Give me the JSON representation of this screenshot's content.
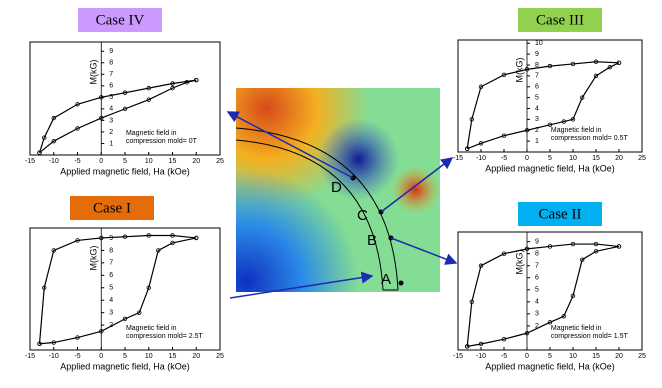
{
  "chart_data": [
    {
      "type": "line",
      "title": "Case IV",
      "title_color": "#cc99ff",
      "xlabel": "Applied magnetic field, Ha (kOe)",
      "ylabel": "M(kG)",
      "annotation": [
        "Magnetic field in",
        "compression mold= 0T"
      ],
      "xlim": [
        -15,
        25
      ],
      "xticks": [
        -15,
        -10,
        -5,
        0,
        5,
        10,
        15,
        20,
        25
      ],
      "ylim": [
        0,
        9.8
      ],
      "yticks": [
        1,
        2,
        3,
        4,
        5,
        6,
        7,
        8,
        9
      ],
      "series": [
        {
          "color": "#000000",
          "x": [
            20,
            15,
            10,
            5,
            0,
            -5,
            -10,
            -12,
            -13
          ],
          "values": [
            6.5,
            6.2,
            5.8,
            5.4,
            5.0,
            4.4,
            3.2,
            1.5,
            0.2
          ]
        },
        {
          "color": "#000000",
          "x": [
            -13,
            -10,
            -5,
            0,
            5,
            10,
            15,
            18,
            20
          ],
          "values": [
            0.2,
            1.2,
            2.3,
            3.2,
            4.0,
            4.8,
            5.8,
            6.3,
            6.5
          ]
        }
      ]
    },
    {
      "type": "line",
      "title": "Case III",
      "title_color": "#92d050",
      "xlabel": "Applied magnetic field, Ha (kOe)",
      "ylabel": "M(kG)",
      "annotation": [
        "Magnetic field in",
        "compression mold= 0.5T"
      ],
      "xlim": [
        -15,
        25
      ],
      "xticks": [
        -15,
        -10,
        -5,
        0,
        5,
        10,
        15,
        20,
        25
      ],
      "ylim": [
        0,
        10.3
      ],
      "yticks": [
        1,
        2,
        3,
        4,
        5,
        6,
        7,
        8,
        9,
        10
      ],
      "series": [
        {
          "color": "#000000",
          "x": [
            20,
            15,
            10,
            5,
            0,
            -5,
            -10,
            -12,
            -13
          ],
          "values": [
            8.2,
            8.3,
            8.1,
            7.9,
            7.6,
            7.1,
            6.0,
            3.0,
            0.3
          ]
        },
        {
          "color": "#000000",
          "x": [
            -13,
            -10,
            -5,
            0,
            5,
            8,
            10,
            12,
            15,
            18,
            20
          ],
          "values": [
            0.3,
            0.8,
            1.5,
            2.0,
            2.5,
            2.8,
            3.0,
            5.0,
            7.0,
            7.8,
            8.2
          ]
        }
      ]
    },
    {
      "type": "line",
      "title": "Case I",
      "title_color": "#e46c0a",
      "xlabel": "Applied magnetic field, Ha (kOe)",
      "ylabel": "M(kG)",
      "annotation": [
        "Magnetic field in",
        "compression mold= 2.5T"
      ],
      "xlim": [
        -15,
        25
      ],
      "xticks": [
        -15,
        -10,
        -5,
        0,
        5,
        10,
        15,
        20,
        25
      ],
      "ylim": [
        0,
        9.8
      ],
      "yticks": [
        2,
        3,
        4,
        5,
        6,
        7,
        8,
        9
      ],
      "series": [
        {
          "color": "#000000",
          "x": [
            20,
            15,
            10,
            5,
            0,
            -5,
            -10,
            -12,
            -13
          ],
          "values": [
            9.0,
            9.2,
            9.2,
            9.1,
            9.0,
            8.8,
            8.0,
            5.0,
            0.5
          ]
        },
        {
          "color": "#000000",
          "x": [
            -13,
            -10,
            -5,
            0,
            5,
            8,
            10,
            12,
            15,
            20
          ],
          "values": [
            0.5,
            0.6,
            1.0,
            1.5,
            2.5,
            3.0,
            5.0,
            8.0,
            8.6,
            9.0
          ]
        }
      ]
    },
    {
      "type": "line",
      "title": "Case II",
      "title_color": "#00b0f0",
      "xlabel": "Applied magnetic field, Ha (kOe)",
      "ylabel": "M(kG)",
      "annotation": [
        "Magnetic field in",
        "compression mold= 1.5T"
      ],
      "xlim": [
        -15,
        25
      ],
      "xticks": [
        -15,
        -10,
        -5,
        0,
        5,
        10,
        15,
        20,
        25
      ],
      "ylim": [
        0,
        9.8
      ],
      "yticks": [
        2,
        3,
        4,
        5,
        6,
        7,
        8,
        9
      ],
      "series": [
        {
          "color": "#000000",
          "x": [
            20,
            15,
            10,
            5,
            0,
            -5,
            -10,
            -12,
            -13
          ],
          "values": [
            8.6,
            8.8,
            8.8,
            8.6,
            8.4,
            8.0,
            7.0,
            4.0,
            0.3
          ]
        },
        {
          "color": "#000000",
          "x": [
            -13,
            -10,
            -5,
            0,
            5,
            8,
            10,
            12,
            15,
            20
          ],
          "values": [
            0.3,
            0.5,
            0.9,
            1.4,
            2.3,
            2.8,
            4.5,
            7.5,
            8.2,
            8.6
          ]
        }
      ]
    }
  ],
  "map": {
    "points": [
      "A",
      "B",
      "C",
      "D"
    ]
  }
}
